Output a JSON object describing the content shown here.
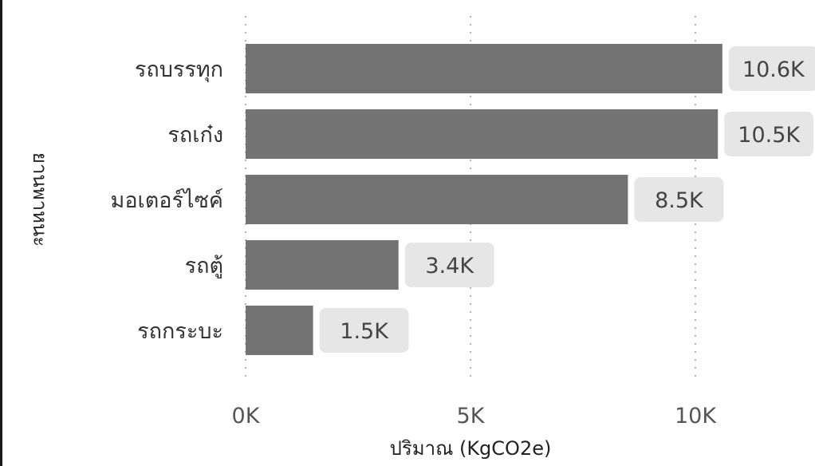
{
  "chart_data": {
    "type": "bar",
    "orientation": "horizontal",
    "categories": [
      "รถบรรทุก",
      "รถเก๋ง",
      "มอเตอร์ไซค์",
      "รถตู้",
      "รถกระบะ"
    ],
    "values": [
      10600,
      10500,
      8500,
      3400,
      1500
    ],
    "data_labels": [
      "10.6K",
      "10.5K",
      "8.5K",
      "3.4K",
      "1.5K"
    ],
    "xlabel": "ปริมาณ (KgCO2e)",
    "ylabel": "ยานพาหนะ",
    "x_ticks": [
      0,
      5000,
      10000
    ],
    "x_tick_labels": [
      "0K",
      "5K",
      "10K"
    ],
    "xlim": [
      0,
      12000
    ],
    "grid": "vertical dotted",
    "colors": {
      "bar": "#737373",
      "label_bg": "#e6e6e6",
      "grid": "#b5b5b5"
    }
  }
}
